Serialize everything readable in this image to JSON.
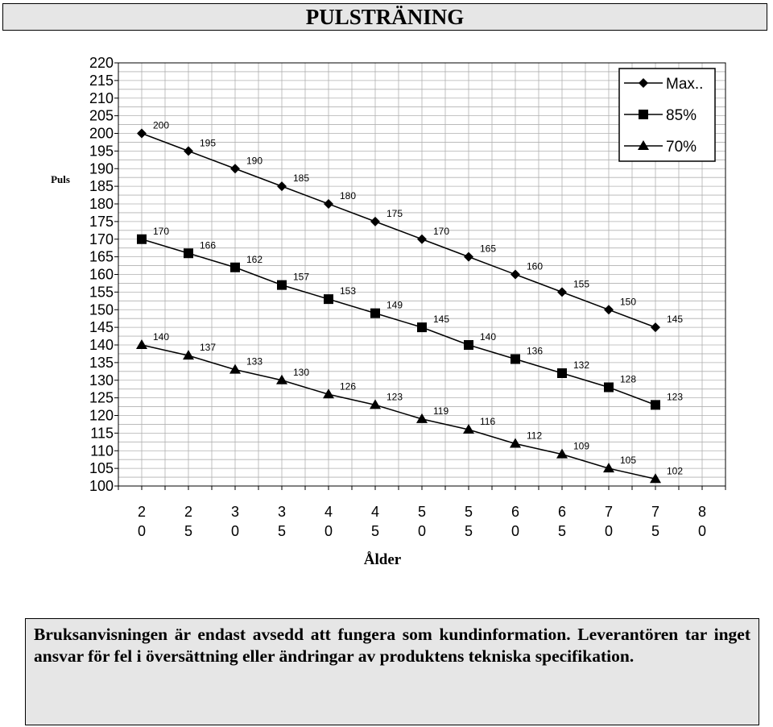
{
  "title": "PULSTRÄNING",
  "note": "Bruksanvisningen är endast avsedd att fungera som kundinformation. Leverantören tar inget ansvar för fel i översättning eller ändringar av produktens tekniska specifikation.",
  "chart_data": {
    "type": "line",
    "title": "PULSTRÄNING",
    "ylabel": "Puls",
    "xlabel": "Ålder",
    "x": [
      20,
      25,
      30,
      35,
      40,
      45,
      50,
      55,
      60,
      65,
      70,
      75
    ],
    "x_ticks": [
      20,
      25,
      30,
      35,
      40,
      45,
      50,
      55,
      60,
      65,
      70,
      75,
      80
    ],
    "xlim": [
      17.5,
      82.5
    ],
    "ylim": [
      100,
      220
    ],
    "y_ticks": [
      100,
      105,
      110,
      115,
      120,
      125,
      130,
      135,
      140,
      145,
      150,
      155,
      160,
      165,
      170,
      175,
      180,
      185,
      190,
      195,
      200,
      205,
      210,
      215,
      220
    ],
    "grid": true,
    "legend": "top-right",
    "series": [
      {
        "name": "Max..",
        "marker": "diamond",
        "color": "#000000",
        "values": [
          200,
          195,
          190,
          185,
          180,
          175,
          170,
          165,
          160,
          155,
          150,
          145
        ]
      },
      {
        "name": "85%",
        "marker": "square",
        "color": "#000000",
        "values": [
          170,
          166,
          162,
          157,
          153,
          149,
          145,
          140,
          136,
          132,
          128,
          123
        ]
      },
      {
        "name": "70%",
        "marker": "triangle",
        "color": "#000000",
        "values": [
          140,
          137,
          133,
          130,
          126,
          123,
          119,
          116,
          112,
          109,
          105,
          102
        ]
      }
    ]
  }
}
